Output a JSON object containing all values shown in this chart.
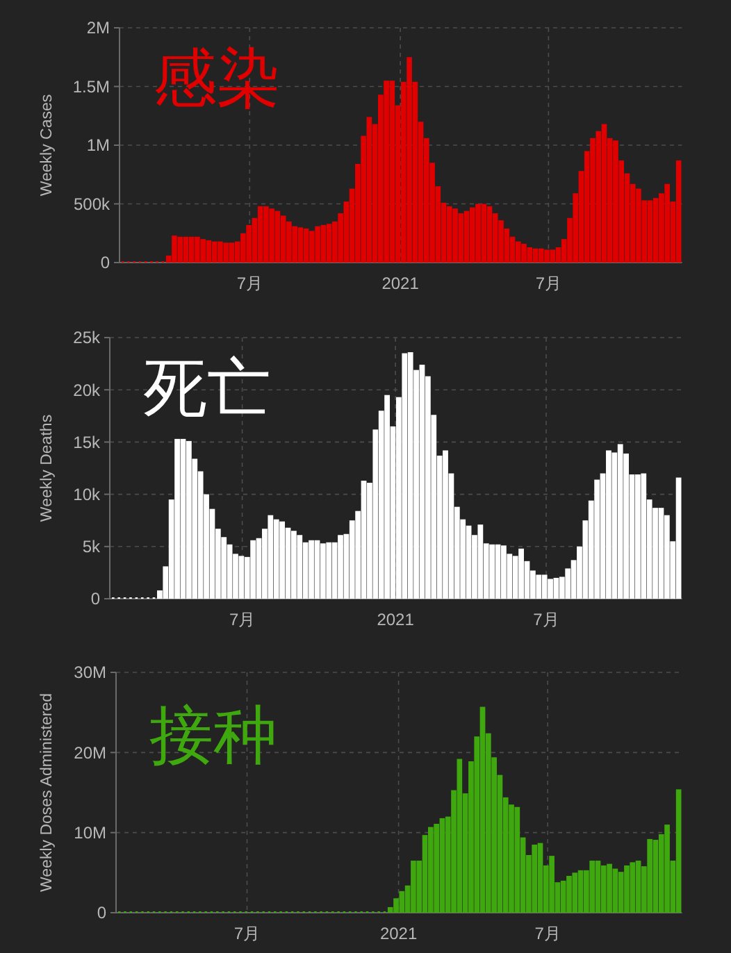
{
  "chart_data": [
    {
      "type": "bar",
      "title": "感染",
      "ylabel": "Weekly Cases",
      "color": "#e00000",
      "grid": true,
      "xlim": [
        "2020-01-24",
        "2021-12-11"
      ],
      "xticks": [
        {
          "value": "2020-07-01",
          "label": "7月"
        },
        {
          "value": "2021-01-01",
          "label": "2021"
        },
        {
          "value": "2021-07-01",
          "label": "7月"
        }
      ],
      "ylim": [
        0,
        2000000
      ],
      "yticks": [
        {
          "value": 0,
          "label": "0"
        },
        {
          "value": 500000,
          "label": "500k"
        },
        {
          "value": 1000000,
          "label": "1M"
        },
        {
          "value": 1500000,
          "label": "1.5M"
        },
        {
          "value": 2000000,
          "label": "2M"
        }
      ],
      "x": [
        "2020-01-28",
        "2020-02-04",
        "2020-02-11",
        "2020-02-18",
        "2020-02-25",
        "2020-03-03",
        "2020-03-10",
        "2020-03-17",
        "2020-03-24",
        "2020-03-31",
        "2020-04-07",
        "2020-04-14",
        "2020-04-21",
        "2020-04-28",
        "2020-05-05",
        "2020-05-12",
        "2020-05-19",
        "2020-05-26",
        "2020-06-02",
        "2020-06-09",
        "2020-06-16",
        "2020-06-23",
        "2020-06-30",
        "2020-07-07",
        "2020-07-14",
        "2020-07-21",
        "2020-07-28",
        "2020-08-04",
        "2020-08-11",
        "2020-08-18",
        "2020-08-25",
        "2020-09-01",
        "2020-09-08",
        "2020-09-15",
        "2020-09-22",
        "2020-09-29",
        "2020-10-06",
        "2020-10-13",
        "2020-10-20",
        "2020-10-27",
        "2020-11-03",
        "2020-11-10",
        "2020-11-17",
        "2020-11-24",
        "2020-12-01",
        "2020-12-08",
        "2020-12-15",
        "2020-12-22",
        "2020-12-29",
        "2021-01-05",
        "2021-01-12",
        "2021-01-19",
        "2021-01-26",
        "2021-02-02",
        "2021-02-09",
        "2021-02-16",
        "2021-02-23",
        "2021-03-02",
        "2021-03-09",
        "2021-03-16",
        "2021-03-23",
        "2021-03-30",
        "2021-04-06",
        "2021-04-13",
        "2021-04-20",
        "2021-04-27",
        "2021-05-04",
        "2021-05-11",
        "2021-05-18",
        "2021-05-25",
        "2021-06-01",
        "2021-06-08",
        "2021-06-15",
        "2021-06-22",
        "2021-06-29",
        "2021-07-06",
        "2021-07-13",
        "2021-07-20",
        "2021-07-27",
        "2021-08-03",
        "2021-08-10",
        "2021-08-17",
        "2021-08-24",
        "2021-08-31",
        "2021-09-07",
        "2021-09-14",
        "2021-09-21",
        "2021-09-28",
        "2021-10-05",
        "2021-10-12",
        "2021-10-19",
        "2021-10-26",
        "2021-11-02",
        "2021-11-09",
        "2021-11-16",
        "2021-11-23",
        "2021-11-30",
        "2021-12-07"
      ],
      "values": [
        0,
        0,
        0,
        0,
        0,
        0,
        0,
        0,
        60000,
        230000,
        220000,
        220000,
        220000,
        220000,
        200000,
        190000,
        180000,
        180000,
        170000,
        170000,
        180000,
        250000,
        320000,
        380000,
        480000,
        480000,
        460000,
        440000,
        400000,
        350000,
        310000,
        300000,
        290000,
        270000,
        310000,
        320000,
        330000,
        350000,
        420000,
        520000,
        630000,
        840000,
        1080000,
        1240000,
        1180000,
        1430000,
        1550000,
        1550000,
        1340000,
        1540000,
        1750000,
        1540000,
        1200000,
        1060000,
        850000,
        650000,
        510000,
        480000,
        460000,
        420000,
        440000,
        470000,
        500000,
        500000,
        480000,
        420000,
        360000,
        290000,
        220000,
        180000,
        160000,
        130000,
        120000,
        120000,
        110000,
        110000,
        130000,
        200000,
        380000,
        590000,
        780000,
        950000,
        1060000,
        1120000,
        1180000,
        1060000,
        1040000,
        870000,
        760000,
        670000,
        630000,
        530000,
        530000,
        550000,
        590000,
        670000,
        520000,
        870000
      ]
    },
    {
      "type": "bar",
      "title": "死亡",
      "ylabel": "Weekly Deaths",
      "color": "#ffffff",
      "grid": true,
      "xlim": [
        "2020-01-24",
        "2021-12-11"
      ],
      "xticks": [
        {
          "value": "2020-07-01",
          "label": "7月"
        },
        {
          "value": "2021-01-01",
          "label": "2021"
        },
        {
          "value": "2021-07-01",
          "label": "7月"
        }
      ],
      "ylim": [
        0,
        25000
      ],
      "yticks": [
        {
          "value": 0,
          "label": "0"
        },
        {
          "value": 5000,
          "label": "5k"
        },
        {
          "value": 10000,
          "label": "10k"
        },
        {
          "value": 15000,
          "label": "15k"
        },
        {
          "value": 20000,
          "label": "20k"
        },
        {
          "value": 25000,
          "label": "25k"
        }
      ],
      "x": [
        "2020-01-28",
        "2020-02-04",
        "2020-02-11",
        "2020-02-18",
        "2020-02-25",
        "2020-03-03",
        "2020-03-10",
        "2020-03-17",
        "2020-03-24",
        "2020-03-31",
        "2020-04-07",
        "2020-04-14",
        "2020-04-21",
        "2020-04-28",
        "2020-05-05",
        "2020-05-12",
        "2020-05-19",
        "2020-05-26",
        "2020-06-02",
        "2020-06-09",
        "2020-06-16",
        "2020-06-23",
        "2020-06-30",
        "2020-07-07",
        "2020-07-14",
        "2020-07-21",
        "2020-07-28",
        "2020-08-04",
        "2020-08-11",
        "2020-08-18",
        "2020-08-25",
        "2020-09-01",
        "2020-09-08",
        "2020-09-15",
        "2020-09-22",
        "2020-09-29",
        "2020-10-06",
        "2020-10-13",
        "2020-10-20",
        "2020-10-27",
        "2020-11-03",
        "2020-11-10",
        "2020-11-17",
        "2020-11-24",
        "2020-12-01",
        "2020-12-08",
        "2020-12-15",
        "2020-12-22",
        "2020-12-29",
        "2021-01-05",
        "2021-01-12",
        "2021-01-19",
        "2021-01-26",
        "2021-02-02",
        "2021-02-09",
        "2021-02-16",
        "2021-02-23",
        "2021-03-02",
        "2021-03-09",
        "2021-03-16",
        "2021-03-23",
        "2021-03-30",
        "2021-04-06",
        "2021-04-13",
        "2021-04-20",
        "2021-04-27",
        "2021-05-04",
        "2021-05-11",
        "2021-05-18",
        "2021-05-25",
        "2021-06-01",
        "2021-06-08",
        "2021-06-15",
        "2021-06-22",
        "2021-06-29",
        "2021-07-06",
        "2021-07-13",
        "2021-07-20",
        "2021-07-27",
        "2021-08-03",
        "2021-08-10",
        "2021-08-17",
        "2021-08-24",
        "2021-08-31",
        "2021-09-07",
        "2021-09-14",
        "2021-09-21",
        "2021-09-28",
        "2021-10-05",
        "2021-10-12",
        "2021-10-19",
        "2021-10-26",
        "2021-11-02",
        "2021-11-09",
        "2021-11-16",
        "2021-11-23",
        "2021-11-30",
        "2021-12-07"
      ],
      "values": [
        0,
        0,
        0,
        0,
        0,
        0,
        0,
        0,
        800,
        3100,
        9500,
        15300,
        15300,
        15100,
        13400,
        12200,
        10000,
        8600,
        6700,
        5900,
        5200,
        4300,
        4100,
        4000,
        5600,
        5800,
        6700,
        8000,
        7600,
        7400,
        6800,
        6500,
        6100,
        5400,
        5600,
        5600,
        5300,
        5400,
        5400,
        6100,
        6200,
        7500,
        8400,
        11300,
        11100,
        16200,
        18000,
        19500,
        16500,
        19300,
        23500,
        23600,
        21900,
        22400,
        21300,
        17600,
        13700,
        14200,
        12000,
        8800,
        7600,
        7000,
        6100,
        7100,
        5300,
        5200,
        5200,
        5100,
        4300,
        4100,
        4800,
        3600,
        2700,
        2300,
        2300,
        1900,
        2000,
        2100,
        2900,
        3700,
        5000,
        7500,
        9400,
        11400,
        12000,
        14200,
        14000,
        14800,
        13900,
        11900,
        11900,
        12000,
        9500,
        8700,
        8700,
        8000,
        5500,
        11600
      ]
    },
    {
      "type": "bar",
      "title": "接种",
      "ylabel": "Weekly Doses Administered",
      "color": "#3fa80f",
      "grid": true,
      "xlim": [
        "2020-01-24",
        "2021-12-11"
      ],
      "xticks": [
        {
          "value": "2020-07-01",
          "label": "7月"
        },
        {
          "value": "2021-01-01",
          "label": "2021"
        },
        {
          "value": "2021-07-01",
          "label": "7月"
        }
      ],
      "ylim": [
        0,
        30000000
      ],
      "yticks": [
        {
          "value": 0,
          "label": "0"
        },
        {
          "value": 10000000,
          "label": "10M"
        },
        {
          "value": 20000000,
          "label": "20M"
        },
        {
          "value": 30000000,
          "label": "30M"
        }
      ],
      "x": [
        "2020-01-28",
        "2020-02-04",
        "2020-02-11",
        "2020-02-18",
        "2020-02-25",
        "2020-03-03",
        "2020-03-10",
        "2020-03-17",
        "2020-03-24",
        "2020-03-31",
        "2020-04-07",
        "2020-04-14",
        "2020-04-21",
        "2020-04-28",
        "2020-05-05",
        "2020-05-12",
        "2020-05-19",
        "2020-05-26",
        "2020-06-02",
        "2020-06-09",
        "2020-06-16",
        "2020-06-23",
        "2020-06-30",
        "2020-07-07",
        "2020-07-14",
        "2020-07-21",
        "2020-07-28",
        "2020-08-04",
        "2020-08-11",
        "2020-08-18",
        "2020-08-25",
        "2020-09-01",
        "2020-09-08",
        "2020-09-15",
        "2020-09-22",
        "2020-09-29",
        "2020-10-06",
        "2020-10-13",
        "2020-10-20",
        "2020-10-27",
        "2020-11-03",
        "2020-11-10",
        "2020-11-17",
        "2020-11-24",
        "2020-12-01",
        "2020-12-08",
        "2020-12-15",
        "2020-12-22",
        "2020-12-29",
        "2021-01-05",
        "2021-01-12",
        "2021-01-19",
        "2021-01-26",
        "2021-02-02",
        "2021-02-09",
        "2021-02-16",
        "2021-02-23",
        "2021-03-02",
        "2021-03-09",
        "2021-03-16",
        "2021-03-23",
        "2021-03-30",
        "2021-04-06",
        "2021-04-13",
        "2021-04-20",
        "2021-04-27",
        "2021-05-04",
        "2021-05-11",
        "2021-05-18",
        "2021-05-25",
        "2021-06-01",
        "2021-06-08",
        "2021-06-15",
        "2021-06-22",
        "2021-06-29",
        "2021-07-06",
        "2021-07-13",
        "2021-07-20",
        "2021-07-27",
        "2021-08-03",
        "2021-08-10",
        "2021-08-17",
        "2021-08-24",
        "2021-08-31",
        "2021-09-07",
        "2021-09-14",
        "2021-09-21",
        "2021-09-28",
        "2021-10-05",
        "2021-10-12",
        "2021-10-19",
        "2021-10-26",
        "2021-11-02",
        "2021-11-09",
        "2021-11-16",
        "2021-11-23",
        "2021-11-30",
        "2021-12-07"
      ],
      "values": [
        0,
        0,
        0,
        0,
        0,
        0,
        0,
        0,
        0,
        0,
        0,
        0,
        0,
        0,
        0,
        0,
        0,
        0,
        0,
        0,
        0,
        0,
        0,
        0,
        0,
        0,
        0,
        0,
        0,
        0,
        0,
        0,
        0,
        0,
        0,
        0,
        0,
        0,
        0,
        0,
        0,
        0,
        0,
        0,
        0,
        0,
        0,
        700000,
        1800000,
        2700000,
        3400000,
        6500000,
        6500000,
        9700000,
        10700000,
        11100000,
        11800000,
        12000000,
        15300000,
        19200000,
        14900000,
        18900000,
        22000000,
        25700000,
        22400000,
        19400000,
        17200000,
        14400000,
        13500000,
        13200000,
        9400000,
        7200000,
        8500000,
        8700000,
        5900000,
        7100000,
        3800000,
        4000000,
        4600000,
        5000000,
        5300000,
        5300000,
        6500000,
        6500000,
        5900000,
        6100000,
        5500000,
        5100000,
        5900000,
        6300000,
        6500000,
        5800000,
        9200000,
        9100000,
        9800000,
        11000000,
        6500000,
        15400000
      ]
    }
  ]
}
